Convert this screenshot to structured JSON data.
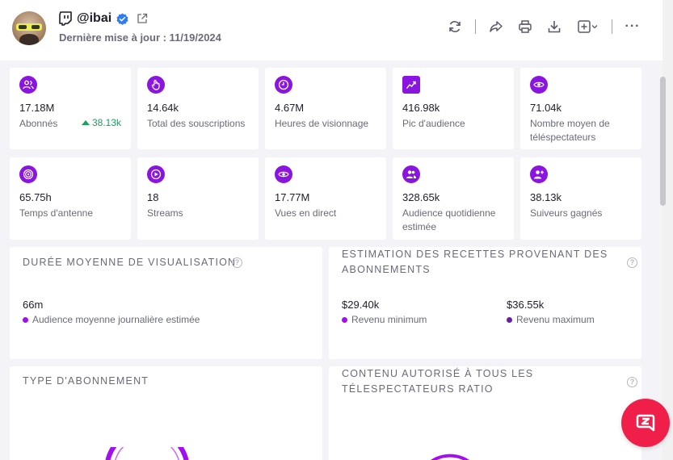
{
  "header": {
    "handle": "@ibai",
    "updated": "Dernière mise à jour : 11/19/2024"
  },
  "stats": [
    {
      "icon": "users-icon",
      "value": "17.18M",
      "label": "Abonnés",
      "delta": "38.13k"
    },
    {
      "icon": "hand-pointer-icon",
      "value": "14.64k",
      "label": "Total des souscriptions"
    },
    {
      "icon": "clock-icon",
      "value": "4.67M",
      "label": "Heures de visionnage"
    },
    {
      "icon": "trending-chart-icon",
      "value": "416.98k",
      "label": "Pic d'audience"
    },
    {
      "icon": "eye-icon",
      "value": "71.04k",
      "label": "Nombre moyen de téléspectateurs"
    },
    {
      "icon": "target-icon",
      "value": "65.75h",
      "label": "Temps d'antenne"
    },
    {
      "icon": "play-icon",
      "value": "18",
      "label": "Streams"
    },
    {
      "icon": "eye-icon",
      "value": "17.77M",
      "label": "Vues en direct"
    },
    {
      "icon": "users-icon",
      "value": "328.65k",
      "label": "Audience quotidienne estimée"
    },
    {
      "icon": "user-plus-icon",
      "value": "38.13k",
      "label": "Suiveurs gagnés"
    }
  ],
  "panels": {
    "watch_duration": {
      "title": "DURÉE MOYENNE DE VISUALISATION",
      "value": "66m",
      "legend": "Audience moyenne journalière estimée"
    },
    "revenue": {
      "title_line1": "ESTIMATION DES RECETTES PROVENANT DES",
      "title_line2": "ABONNEMENTS",
      "min_value": "$29.40k",
      "min_label": "Revenu minimum",
      "max_value": "$36.55k",
      "max_label": "Revenu maximum"
    },
    "sub_type": {
      "title": "TYPE D'ABONNEMENT"
    },
    "content_rating": {
      "title_line1": "CONTENU AUTORISÉ À TOUS LES",
      "title_line2": "TÉLESPECTATEURS RATIO"
    }
  },
  "colors": {
    "accent": "#8a14e0",
    "legend_purple": "#a10ff0",
    "legend_dark_purple": "#6a1ea8",
    "positive": "#19a05a",
    "chat": "#ef1f4a"
  }
}
